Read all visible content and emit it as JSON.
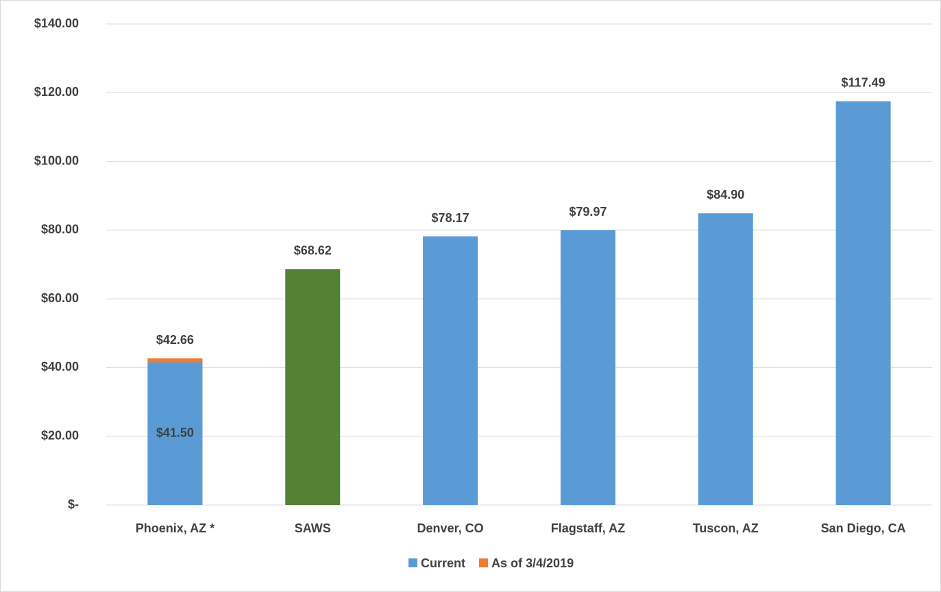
{
  "chart_data": {
    "type": "bar",
    "categories": [
      "Phoenix, AZ *",
      "SAWS",
      "Denver, CO",
      "Flagstaff, AZ",
      "Tuscon, AZ",
      "San Diego, CA"
    ],
    "series": [
      {
        "name": "As of 3/4/2019",
        "color": "#ed7d31",
        "values": [
          42.66,
          null,
          null,
          null,
          null,
          null
        ],
        "value_labels": [
          "$42.66",
          null,
          null,
          null,
          null,
          null
        ]
      },
      {
        "name": "Current",
        "color": "#5b9bd5",
        "colors": [
          "#5b9bd5",
          "#548235",
          "#5b9bd5",
          "#5b9bd5",
          "#5b9bd5",
          "#5b9bd5"
        ],
        "values": [
          41.5,
          68.62,
          78.17,
          79.97,
          84.9,
          117.49
        ],
        "value_labels": [
          "$41.50",
          "$68.62",
          "$78.17",
          "$79.97",
          "$84.90",
          "$117.49"
        ]
      }
    ],
    "ylim": [
      0,
      140
    ],
    "yticks": [
      {
        "value": 0,
        "label": "$-"
      },
      {
        "value": 20,
        "label": "$20.00"
      },
      {
        "value": 40,
        "label": "$40.00"
      },
      {
        "value": 60,
        "label": "$60.00"
      },
      {
        "value": 80,
        "label": "$80.00"
      },
      {
        "value": 100,
        "label": "$100.00"
      },
      {
        "value": 120,
        "label": "$120.00"
      },
      {
        "value": 140,
        "label": "$140.00"
      }
    ],
    "grid": true,
    "legend": "bottom"
  }
}
